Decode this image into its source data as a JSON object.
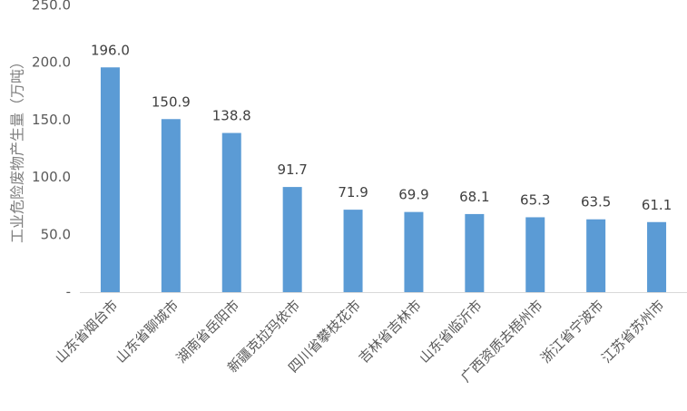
{
  "chart_data": {
    "type": "bar",
    "title": "",
    "xlabel": "",
    "ylabel": "工业危险废物产生量（万吨）",
    "categories": [
      "山东省烟台市",
      "山东省聊城市",
      "湖南省岳阳市",
      "新疆克拉玛依市",
      "四川省攀枝花市",
      "吉林省吉林市",
      "山东省临沂市",
      "广西资质去梧州市",
      "浙江省宁波市",
      "江苏省苏州市"
    ],
    "values": [
      196.0,
      150.9,
      138.8,
      91.7,
      71.9,
      69.9,
      68.1,
      65.3,
      63.5,
      61.1
    ],
    "data_labels": [
      "196.0",
      "150.9",
      "138.8",
      "91.7",
      "71.9",
      "69.9",
      "68.1",
      "65.3",
      "63.5",
      "61.1"
    ],
    "ylim": [
      0,
      250
    ],
    "yticks": [
      0,
      50,
      100,
      150,
      200,
      250
    ],
    "ytick_labels": [
      "-",
      "50.0",
      "100.0",
      "150.0",
      "200.0",
      "250.0"
    ],
    "grid": false,
    "legend": "none",
    "bar_color": "#5B9BD5",
    "axis_color": "#d9d9d9"
  }
}
